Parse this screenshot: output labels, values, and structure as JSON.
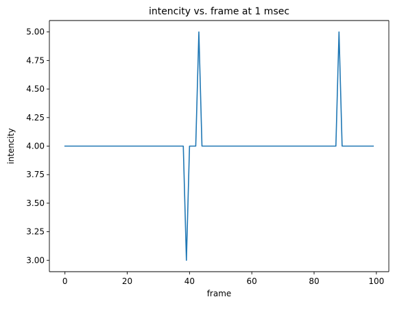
{
  "chart_data": {
    "type": "line",
    "title": "intencity vs. frame at 1 msec",
    "xlabel": "frame",
    "ylabel": "intencity",
    "xlim": [
      -5,
      104
    ],
    "ylim": [
      2.9,
      5.1
    ],
    "xticks": [
      0,
      20,
      40,
      60,
      80,
      100
    ],
    "yticks": [
      3.0,
      3.25,
      3.5,
      3.75,
      4.0,
      4.25,
      4.5,
      4.75,
      5.0
    ],
    "xtick_labels": [
      "0",
      "20",
      "40",
      "60",
      "80",
      "100"
    ],
    "ytick_labels": [
      "3.00",
      "3.25",
      "3.50",
      "3.75",
      "4.00",
      "4.25",
      "4.50",
      "4.75",
      "5.00"
    ],
    "grid": false,
    "series": [
      {
        "color": "#1f77b4",
        "points": [
          [
            0,
            4
          ],
          [
            38,
            4
          ],
          [
            39,
            3
          ],
          [
            40,
            4
          ],
          [
            41,
            4
          ],
          [
            42,
            4
          ],
          [
            43,
            5
          ],
          [
            44,
            4
          ],
          [
            87,
            4
          ],
          [
            88,
            5
          ],
          [
            89,
            4
          ],
          [
            99,
            4
          ]
        ]
      }
    ]
  }
}
